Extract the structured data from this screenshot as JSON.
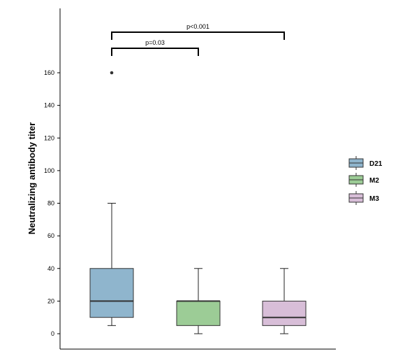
{
  "chart_data": {
    "type": "box",
    "ylabel": "Neutralizing antibody titer",
    "xlabel": "",
    "ylim": [
      0,
      160
    ],
    "yticks": [
      0,
      20,
      40,
      60,
      80,
      100,
      120,
      140,
      160
    ],
    "grid": false,
    "legend_position": "right",
    "series": [
      {
        "name": "D21",
        "color": "#8fb5cd",
        "whisker_low": 5,
        "q1": 10,
        "median": 20,
        "q3": 40,
        "whisker_high": 80,
        "outliers": [
          160
        ]
      },
      {
        "name": "M2",
        "color": "#9ccc96",
        "whisker_low": 0,
        "q1": 5,
        "median": 20,
        "q3": 20,
        "whisker_high": 40,
        "outliers": []
      },
      {
        "name": "M3",
        "color": "#d8bed8",
        "whisker_low": 0,
        "q1": 5,
        "median": 10,
        "q3": 20,
        "whisker_high": 40,
        "outliers": []
      }
    ],
    "annotations": [
      {
        "from": "D21",
        "to": "M2",
        "text": "p=0.03"
      },
      {
        "from": "D21",
        "to": "M3",
        "text": "p<0.001"
      }
    ]
  }
}
